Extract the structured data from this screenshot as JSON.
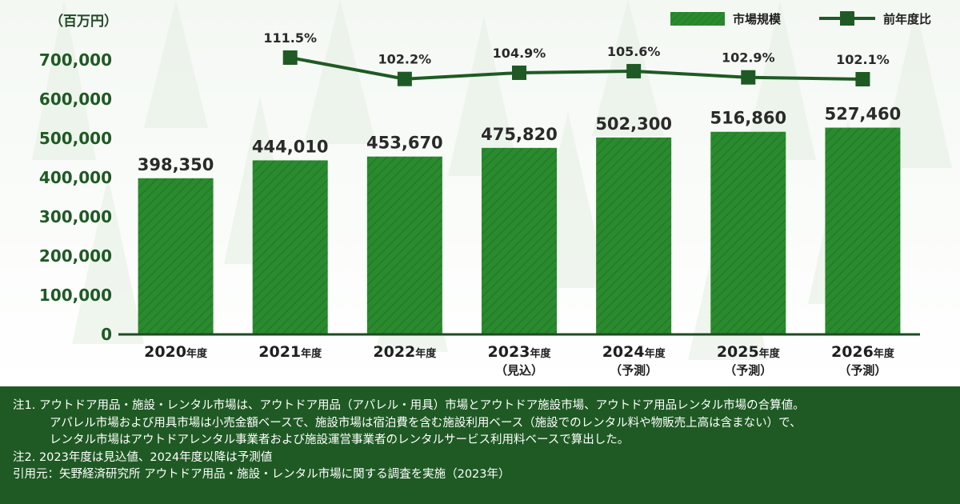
{
  "chart_data": {
    "type": "bar",
    "unit_label": "（百万円）",
    "ylim": [
      0,
      700000
    ],
    "yticks": [
      "0",
      "100,000",
      "200,000",
      "300,000",
      "400,000",
      "500,000",
      "600,000",
      "700,000"
    ],
    "ytick_values": [
      0,
      100000,
      200000,
      300000,
      400000,
      500000,
      600000,
      700000
    ],
    "categories": [
      {
        "year": "2020",
        "suffix": "年度",
        "sub": ""
      },
      {
        "year": "2021",
        "suffix": "年度",
        "sub": ""
      },
      {
        "year": "2022",
        "suffix": "年度",
        "sub": ""
      },
      {
        "year": "2023",
        "suffix": "年度",
        "sub": "（見込）"
      },
      {
        "year": "2024",
        "suffix": "年度",
        "sub": "（予測）"
      },
      {
        "year": "2025",
        "suffix": "年度",
        "sub": "（予測）"
      },
      {
        "year": "2026",
        "suffix": "年度",
        "sub": "（予測）"
      }
    ],
    "series": [
      {
        "name": "市場規模",
        "type": "bar",
        "values": [
          398350,
          444010,
          453670,
          475820,
          502300,
          516860,
          527460
        ],
        "labels": [
          "398,350",
          "444,010",
          "453,670",
          "475,820",
          "502,300",
          "516,860",
          "527,460"
        ],
        "color": "#2a8a2e"
      },
      {
        "name": "前年度比",
        "type": "line",
        "values": [
          null,
          111.5,
          102.2,
          104.9,
          105.6,
          102.9,
          102.1
        ],
        "labels": [
          "",
          "111.5%",
          "102.2%",
          "104.9%",
          "105.6%",
          "102.9%",
          "102.1%"
        ],
        "color": "#1f5a24"
      }
    ],
    "legend_position": "top-right",
    "grid": false
  },
  "notes": {
    "note1_line1": "注1. アウトドア用品・施設・レンタル市場は、アウトドア用品（アパレル・用具）市場とアウトドア施設市場、アウトドア用品レンタル市場の合算値。",
    "note1_line2": "アパレル市場および用具市場は小売金額ベースで、施設市場は宿泊費を含む施設利用ベース（施設でのレンタル料や物販売上高は含まない）で、",
    "note1_line3": "レンタル市場はアウトドアレンタル事業者および施設運営事業者のレンタルサービス利用料ベースで算出した。",
    "note2": "注2. 2023年度は見込値、2024年度以降は予測値",
    "source": "引用元：矢野経済研究所 アウトドア用品・施設・レンタル市場に関する調査を実施（2023年）"
  },
  "colors": {
    "bar": "#2a8a2e",
    "line": "#1f5a24",
    "notes_bg": "#1f5a24"
  }
}
